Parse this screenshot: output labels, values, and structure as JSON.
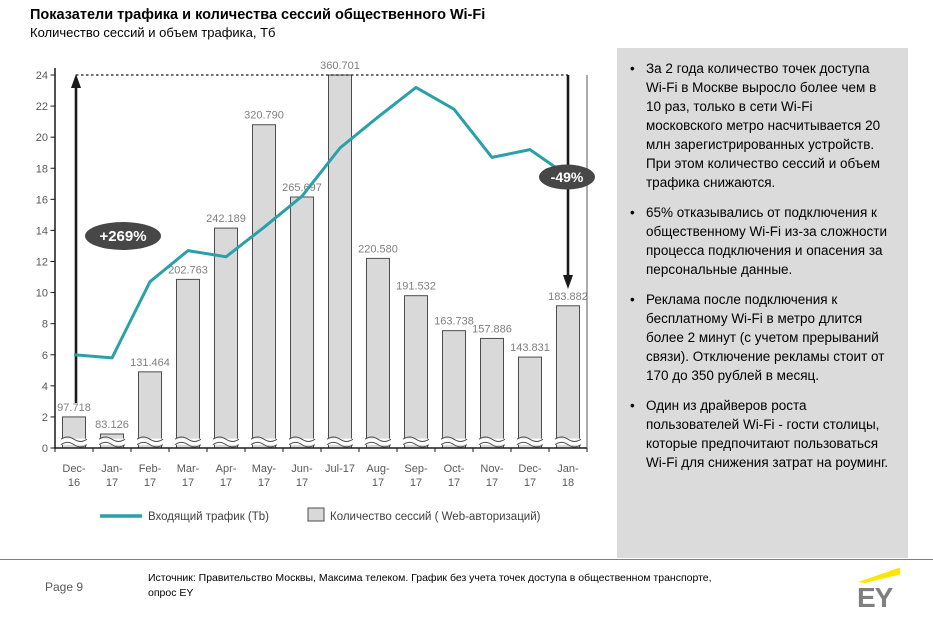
{
  "slide": {
    "title": "Показатели трафика и количества сессий общественного Wi-Fi",
    "subtitle": "Количество сессий и объем трафика, Тб"
  },
  "chart_data": {
    "type": "combo-bar-line",
    "title": "Количество сессий и объем трафика, Тб",
    "categories": [
      "Dec-16",
      "Jan-17",
      "Feb-17",
      "Mar-17",
      "Apr-17",
      "May-17",
      "Jun-17",
      "Jul-17",
      "Aug-17",
      "Sep-17",
      "Oct-17",
      "Nov-17",
      "Dec-17",
      "Jan-18"
    ],
    "x_tick_lines": [
      [
        "Dec-",
        "16"
      ],
      [
        "Jan-",
        "17"
      ],
      [
        "Feb-",
        "17"
      ],
      [
        "Mar-",
        "17"
      ],
      [
        "Apr-",
        "17"
      ],
      [
        "May-",
        "17"
      ],
      [
        "Jun-",
        "17"
      ],
      [
        "Jul-17",
        ""
      ],
      [
        "Aug-",
        "17"
      ],
      [
        "Sep-",
        "17"
      ],
      [
        "Oct-",
        "17"
      ],
      [
        "Nov-",
        "17"
      ],
      [
        "Dec-",
        "17"
      ],
      [
        "Jan-",
        "18"
      ]
    ],
    "series": [
      {
        "name": "Количество сессий ( Web-авторизаций)",
        "type": "bar",
        "values": [
          97.718,
          83.126,
          131.464,
          202.763,
          242.189,
          320.79,
          265.697,
          360.701,
          220.58,
          191.532,
          163.738,
          157.886,
          143.831,
          183.882
        ],
        "data_labels": [
          "97.718",
          "83.126",
          "131.464",
          "202.763",
          "242.189",
          "320.790",
          "265.697",
          "360.701",
          "220.580",
          "191.532",
          "163.738",
          "157.886",
          "143.831",
          "183.882"
        ],
        "display_heights_axis_units": [
          2.0,
          0.9,
          4.9,
          10.85,
          14.15,
          20.8,
          16.15,
          24.0,
          12.2,
          9.8,
          7.55,
          7.05,
          5.85,
          9.15
        ],
        "axis_break_near_zero": true
      },
      {
        "name": "Входящий трафик (Tb)",
        "type": "line",
        "values": [
          6.0,
          5.8,
          10.7,
          12.7,
          12.3,
          14.2,
          16.2,
          19.3,
          21.3,
          23.2,
          21.8,
          18.7,
          19.2,
          17.5
        ]
      }
    ],
    "ylim": [
      0,
      24
    ],
    "ytick_step": 2,
    "grid": false,
    "legend_position": "bottom",
    "annotations": [
      {
        "text": "+269%"
      },
      {
        "text": "-49%"
      }
    ],
    "colors": {
      "line": "#2AA0A9",
      "bar_fill": "#D9D9D9",
      "bar_stroke": "#4D4D4D",
      "data_label": "#7F7F7F",
      "tick_label": "#595959",
      "axis": "#1A1A1A",
      "annotation_fill": "#474747",
      "annotation_text": "#FFFFFF"
    }
  },
  "legend": {
    "line_label": "Входящий трафик (Tb)",
    "bar_label": "Количество сессий ( Web-авторизаций)"
  },
  "panel": {
    "bullets": [
      "За 2 года количество точек доступа Wi-Fi в Москве выросло более чем в 10 раз, только в сети Wi-Fi московского метро насчитывается 20 млн зарегистрированных устройств. При этом количество сессий и объем трафика снижаются.",
      "65% отказывались от подключения к общественному Wi-Fi из-за сложности процесса подключения и опасения за персональные данные.",
      "Реклама после подключения к бесплатному Wi-Fi в метро длится более 2 минут (с учетом прерываний связи). Отключение рекламы стоит от 170 до 350 рублей в месяц.",
      "Один из драйверов роста пользователей Wi-Fi - гости столицы, которые предпочитают пользоваться Wi-Fi для снижения затрат на роуминг."
    ]
  },
  "footer": {
    "page_label": "Page 9",
    "source_lines": [
      "Источник: Правительство Москвы, Максима телеком. График без учета точек доступа в общественном транспорте,",
      "опрос EY"
    ],
    "logo_text": "EY"
  }
}
